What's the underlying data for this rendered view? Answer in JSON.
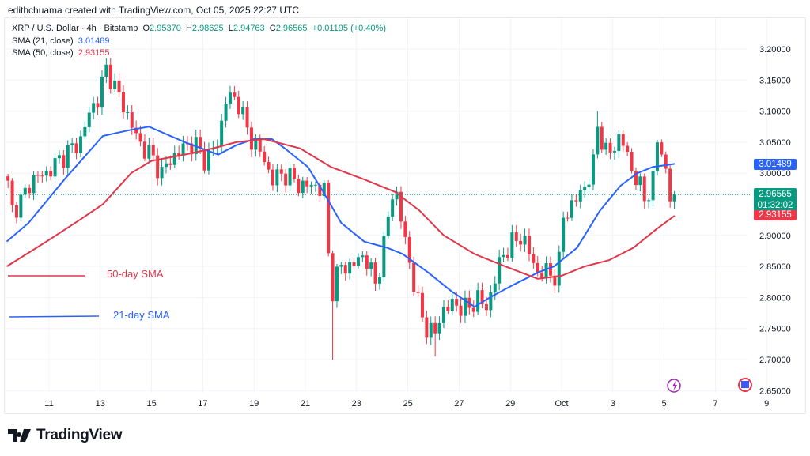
{
  "credit": "edithchuama created with TradingView.com, Oct 05, 2025 22:27 UTC",
  "legend": {
    "symbol": "XRP / U.S. Dollar · 4h · Bitstamp",
    "o_label": "O",
    "o": "2.95370",
    "h_label": "H",
    "h": "2.98625",
    "l_label": "L",
    "l": "2.94763",
    "c_label": "C",
    "c": "2.96565",
    "change": "+0.01195 (+0.40%)",
    "sma21_label": "SMA (21, close)",
    "sma21": "3.01489",
    "sma50_label": "SMA (50, close)",
    "sma50": "2.93155"
  },
  "badges": {
    "sma21": "3.01489",
    "price": "2.96565",
    "countdown": "01:32:02",
    "sma50": "2.93155"
  },
  "annotations": {
    "sma50": "50-day SMA",
    "sma21": "21-day SMA"
  },
  "logo": "TradingView",
  "colors": {
    "up": "#089981",
    "down": "#f23645",
    "sma21": "#2962ff",
    "sma50": "#e0374a"
  },
  "chart_data": {
    "type": "candlestick",
    "title": "XRP / U.S. Dollar · 4h · Bitstamp",
    "x_unit": "day (Sep; 31 = Oct 1)",
    "ylim": [
      2.63,
      3.22
    ],
    "y_ticks": [
      "3.20000",
      "3.15000",
      "3.10000",
      "3.05000",
      "3.00000",
      "2.90000",
      "2.85000",
      "2.80000",
      "2.75000",
      "2.70000",
      "2.65000"
    ],
    "x_ticks": [
      {
        "day": 11,
        "label": "11"
      },
      {
        "day": 13,
        "label": "13"
      },
      {
        "day": 15,
        "label": "15"
      },
      {
        "day": 17,
        "label": "17"
      },
      {
        "day": 19,
        "label": "19"
      },
      {
        "day": 21,
        "label": "21"
      },
      {
        "day": 23,
        "label": "23"
      },
      {
        "day": 25,
        "label": "25"
      },
      {
        "day": 27,
        "label": "27"
      },
      {
        "day": 29,
        "label": "29"
      },
      {
        "day": 31,
        "label": "Oct"
      },
      {
        "day": 33,
        "label": "3"
      },
      {
        "day": 35,
        "label": "5"
      },
      {
        "day": 37,
        "label": "7"
      },
      {
        "day": 39,
        "label": "9"
      }
    ],
    "close_path": [
      [
        9.4,
        2.98
      ],
      [
        9.55,
        2.94
      ],
      [
        10.0,
        2.96
      ],
      [
        10.3,
        2.99
      ],
      [
        10.9,
        3.0
      ],
      [
        11.6,
        3.03
      ],
      [
        12.2,
        3.05
      ],
      [
        12.6,
        3.1
      ],
      [
        12.9,
        3.12
      ],
      [
        13.25,
        3.17
      ],
      [
        13.55,
        3.14
      ],
      [
        14.0,
        3.1
      ],
      [
        14.5,
        3.05
      ],
      [
        14.95,
        3.03
      ],
      [
        15.4,
        3.0
      ],
      [
        15.7,
        3.02
      ],
      [
        16.2,
        3.04
      ],
      [
        16.65,
        3.05
      ],
      [
        17.1,
        3.02
      ],
      [
        17.6,
        3.05
      ],
      [
        17.9,
        3.12
      ],
      [
        18.35,
        3.12
      ],
      [
        18.8,
        3.06
      ],
      [
        19.3,
        3.03
      ],
      [
        19.7,
        2.99
      ],
      [
        20.2,
        3.0
      ],
      [
        20.8,
        2.98
      ],
      [
        21.4,
        2.98
      ],
      [
        21.75,
        2.97
      ],
      [
        21.9,
        2.87
      ],
      [
        22.05,
        2.81
      ],
      [
        22.35,
        2.85
      ],
      [
        22.8,
        2.85
      ],
      [
        23.3,
        2.87
      ],
      [
        23.75,
        2.82
      ],
      [
        24.05,
        2.88
      ],
      [
        24.35,
        2.96
      ],
      [
        24.5,
        2.98
      ],
      [
        24.85,
        2.9
      ],
      [
        25.15,
        2.84
      ],
      [
        25.45,
        2.78
      ],
      [
        25.75,
        2.75
      ],
      [
        26.05,
        2.74
      ],
      [
        26.35,
        2.78
      ],
      [
        26.85,
        2.79
      ],
      [
        27.3,
        2.78
      ],
      [
        27.75,
        2.8
      ],
      [
        28.05,
        2.78
      ],
      [
        28.4,
        2.83
      ],
      [
        28.7,
        2.87
      ],
      [
        29.15,
        2.89
      ],
      [
        29.45,
        2.9
      ],
      [
        29.75,
        2.87
      ],
      [
        30.05,
        2.84
      ],
      [
        30.55,
        2.84
      ],
      [
        30.85,
        2.83
      ],
      [
        31.05,
        2.93
      ],
      [
        31.45,
        2.95
      ],
      [
        31.9,
        2.98
      ],
      [
        32.2,
        3.0
      ],
      [
        32.4,
        3.08
      ],
      [
        32.7,
        3.03
      ],
      [
        33.0,
        3.04
      ],
      [
        33.3,
        3.06
      ],
      [
        33.8,
        3.0
      ],
      [
        34.25,
        2.96
      ],
      [
        34.55,
        2.98
      ],
      [
        34.75,
        3.06
      ],
      [
        35.0,
        3.02
      ],
      [
        35.25,
        2.955
      ],
      [
        35.41,
        2.96565
      ]
    ],
    "extremes": [
      {
        "day": 13.25,
        "high": 3.185
      },
      {
        "day": 22.0,
        "low": 2.7
      },
      {
        "day": 32.4,
        "high": 3.1
      },
      {
        "day": 26.1,
        "low": 2.705
      }
    ],
    "series": [
      {
        "name": "SMA (21, close)",
        "last": 3.01489,
        "points": [
          [
            9.35,
            2.89
          ],
          [
            10.2,
            2.92
          ],
          [
            11.6,
            2.99
          ],
          [
            13.1,
            3.06
          ],
          [
            14.2,
            3.07
          ],
          [
            14.9,
            3.075
          ],
          [
            16.3,
            3.05
          ],
          [
            17.6,
            3.03
          ],
          [
            18.3,
            3.045
          ],
          [
            19.0,
            3.055
          ],
          [
            19.7,
            3.055
          ],
          [
            20.2,
            3.04
          ],
          [
            21.1,
            3.01
          ],
          [
            21.7,
            2.97
          ],
          [
            22.4,
            2.92
          ],
          [
            23.3,
            2.89
          ],
          [
            24.2,
            2.88
          ],
          [
            24.8,
            2.87
          ],
          [
            25.8,
            2.84
          ],
          [
            26.7,
            2.81
          ],
          [
            27.6,
            2.785
          ],
          [
            28.2,
            2.8
          ],
          [
            29.1,
            2.82
          ],
          [
            30.07,
            2.84
          ],
          [
            30.7,
            2.85
          ],
          [
            31.6,
            2.88
          ],
          [
            32.5,
            2.94
          ],
          [
            33.3,
            2.98
          ],
          [
            33.95,
            3.0
          ],
          [
            34.55,
            3.01
          ],
          [
            35.41,
            3.015
          ]
        ]
      },
      {
        "name": "SMA (50, close)",
        "last": 2.93155,
        "points": [
          [
            9.35,
            2.85
          ],
          [
            10.9,
            2.89
          ],
          [
            12.2,
            2.925
          ],
          [
            13.1,
            2.95
          ],
          [
            14.2,
            3.0
          ],
          [
            15.0,
            3.02
          ],
          [
            16.3,
            3.03
          ],
          [
            17.4,
            3.04
          ],
          [
            18.3,
            3.05
          ],
          [
            19.4,
            3.055
          ],
          [
            20.8,
            3.04
          ],
          [
            22.0,
            3.01
          ],
          [
            23.3,
            2.99
          ],
          [
            24.5,
            2.97
          ],
          [
            25.45,
            2.94
          ],
          [
            26.4,
            2.9
          ],
          [
            27.6,
            2.87
          ],
          [
            28.8,
            2.85
          ],
          [
            30.07,
            2.83
          ],
          [
            31.0,
            2.835
          ],
          [
            31.9,
            2.85
          ],
          [
            32.85,
            2.86
          ],
          [
            33.8,
            2.88
          ],
          [
            34.7,
            2.91
          ],
          [
            35.41,
            2.93155
          ]
        ]
      }
    ]
  }
}
